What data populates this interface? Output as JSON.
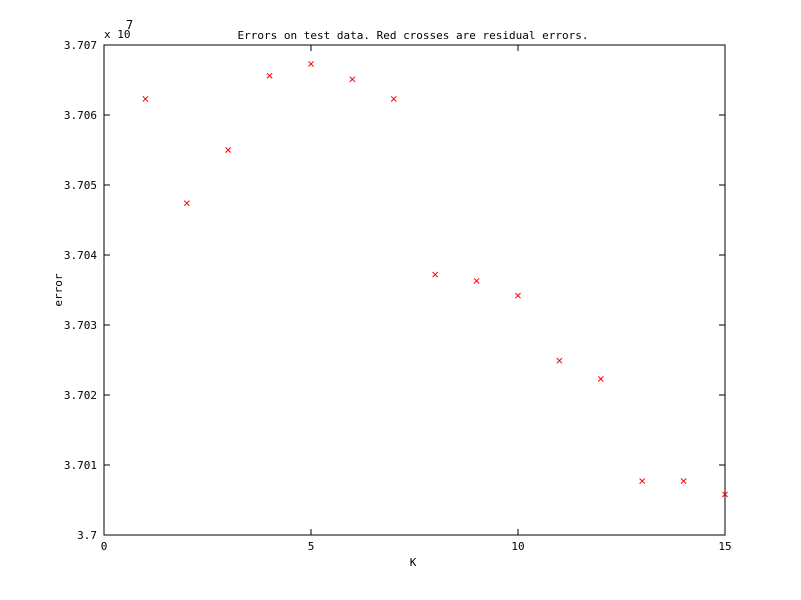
{
  "chart_data": {
    "type": "scatter",
    "title": "Errors on test data. Red crosses are residual errors.",
    "xlabel": "K",
    "ylabel": "error",
    "xlim": [
      0,
      15
    ],
    "ylim": [
      3.7,
      3.707
    ],
    "y_exponent_label": "x 10",
    "y_exponent": "7",
    "xticks": [
      0,
      5,
      10,
      15
    ],
    "xtick_labels": [
      "0",
      "5",
      "10",
      "15"
    ],
    "yticks": [
      3.7,
      3.701,
      3.702,
      3.703,
      3.704,
      3.705,
      3.706,
      3.707
    ],
    "ytick_labels": [
      "3.7",
      "3.701",
      "3.702",
      "3.703",
      "3.704",
      "3.705",
      "3.706",
      "3.707"
    ],
    "grid": false,
    "marker_color": "#ff0000",
    "series": [
      {
        "x": [
          1,
          2,
          3,
          4,
          5,
          6,
          7,
          8,
          9,
          10,
          11,
          12,
          13,
          14,
          15
        ],
        "y": [
          3.70623,
          3.70474,
          3.7055,
          3.70656,
          3.70673,
          3.70651,
          3.70623,
          3.70372,
          3.70363,
          3.70342,
          3.70249,
          3.70223,
          3.70077,
          3.70077,
          3.70058
        ]
      }
    ]
  }
}
